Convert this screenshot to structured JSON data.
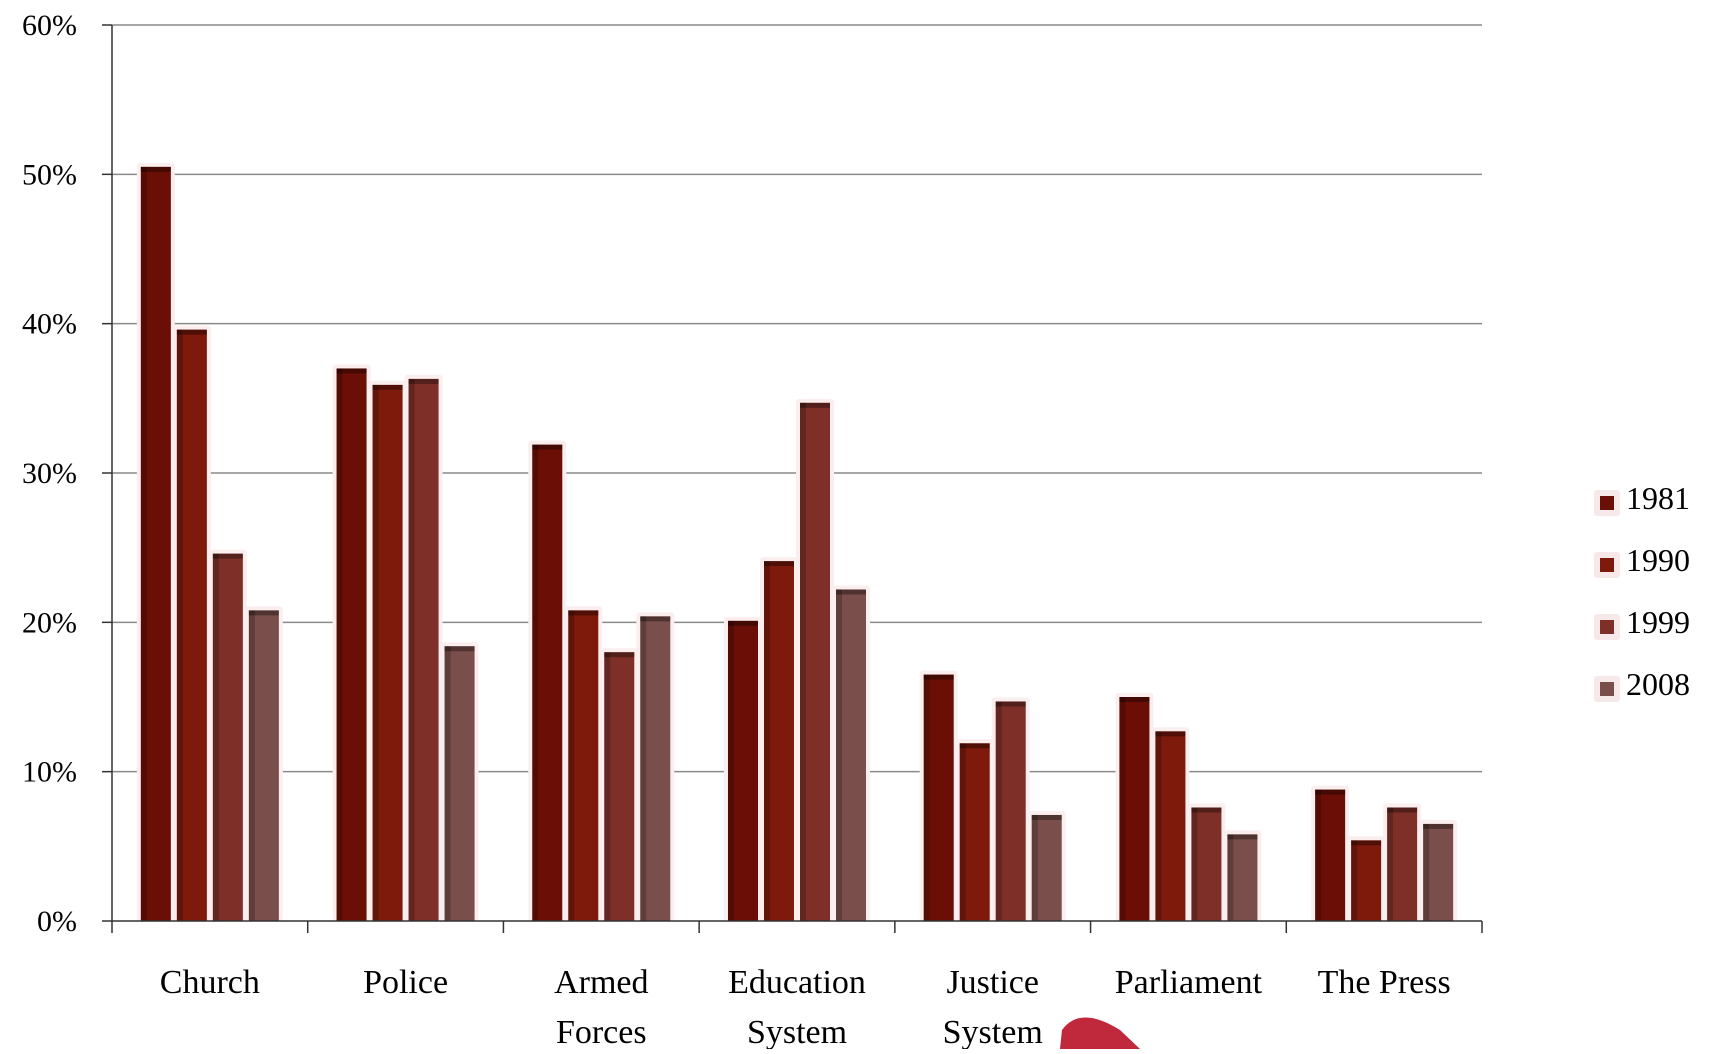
{
  "chart_data": {
    "type": "bar",
    "categories": [
      [
        "Church"
      ],
      [
        "Police"
      ],
      [
        "Armed",
        "Forces"
      ],
      [
        "Education",
        "System"
      ],
      [
        "Justice",
        "System"
      ],
      [
        "Parliament"
      ],
      [
        "The Press"
      ]
    ],
    "series": [
      {
        "name": "1981",
        "color": "#6b0f06",
        "values": [
          50.5,
          37.0,
          31.9,
          20.1,
          16.5,
          15.0,
          8.8
        ]
      },
      {
        "name": "1990",
        "color": "#7d1a0c",
        "values": [
          39.6,
          35.9,
          20.8,
          24.1,
          11.9,
          12.7,
          5.4
        ]
      },
      {
        "name": "1999",
        "color": "#7e3028",
        "values": [
          24.6,
          36.3,
          18.0,
          34.7,
          14.7,
          7.6,
          7.6
        ]
      },
      {
        "name": "2008",
        "color": "#7a4f4b",
        "values": [
          20.8,
          18.4,
          20.4,
          22.2,
          7.1,
          5.8,
          6.5
        ]
      }
    ],
    "yticks": [
      "0%",
      "10%",
      "20%",
      "30%",
      "40%",
      "50%",
      "60%"
    ],
    "ylim": [
      0,
      60
    ],
    "grid": true,
    "legend_position": "right"
  }
}
